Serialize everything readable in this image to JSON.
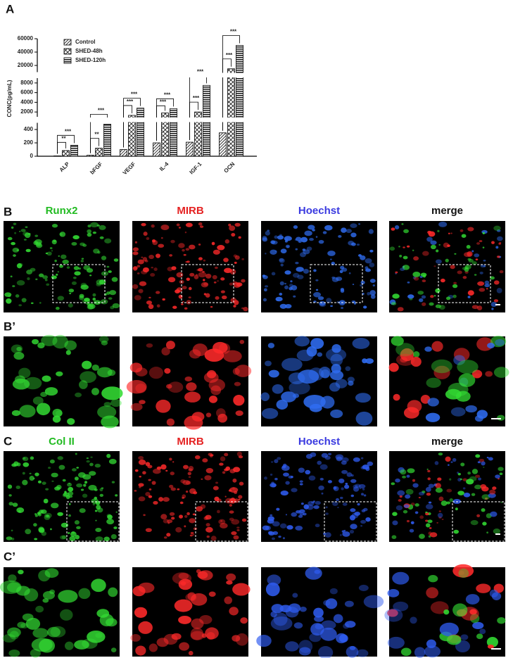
{
  "panel_labels": [
    "A",
    "B",
    "B’",
    "C",
    "C’"
  ],
  "chart_data": {
    "type": "bar",
    "ylabel": "CONC(pg/mL)",
    "categories": [
      "ALP",
      "bFGF",
      "VEGF",
      "IL-4",
      "IGF-1",
      "OCN"
    ],
    "series": [
      {
        "name": "Control",
        "color": "#000000",
        "pattern": "diagonal",
        "values": [
          5,
          15,
          100,
          200,
          210,
          350
        ]
      },
      {
        "name": "SHED-48h",
        "color": "#000000",
        "pattern": "crosshatch",
        "values": [
          85,
          120,
          1300,
          1800,
          2000,
          15000
        ]
      },
      {
        "name": "SHED-120h",
        "color": "#000000",
        "pattern": "horizontal",
        "values": [
          165,
          480,
          2800,
          2700,
          7500,
          50000
        ]
      }
    ],
    "y_segments": [
      {
        "ylim": [
          0,
          500
        ],
        "yticks": [
          0,
          200,
          400
        ]
      },
      {
        "ylim": [
          1000,
          9000
        ],
        "yticks": [
          2000,
          4000,
          6000,
          8000
        ]
      },
      {
        "ylim": [
          10000,
          60000
        ],
        "yticks": [
          20000,
          40000,
          60000
        ]
      }
    ],
    "significance": [
      [
        "**",
        "***"
      ],
      [
        "**",
        "***"
      ],
      [
        "***",
        "***"
      ],
      [
        "***",
        "***"
      ],
      [
        "***",
        "***"
      ],
      [
        "***",
        "***"
      ]
    ]
  },
  "rows": [
    {
      "channels": [
        "Runx2",
        "MIRB",
        "Hoechst",
        "merge"
      ]
    },
    {
      "channels": [
        "Col II",
        "MIRB",
        "Hoechst",
        "merge"
      ]
    }
  ]
}
